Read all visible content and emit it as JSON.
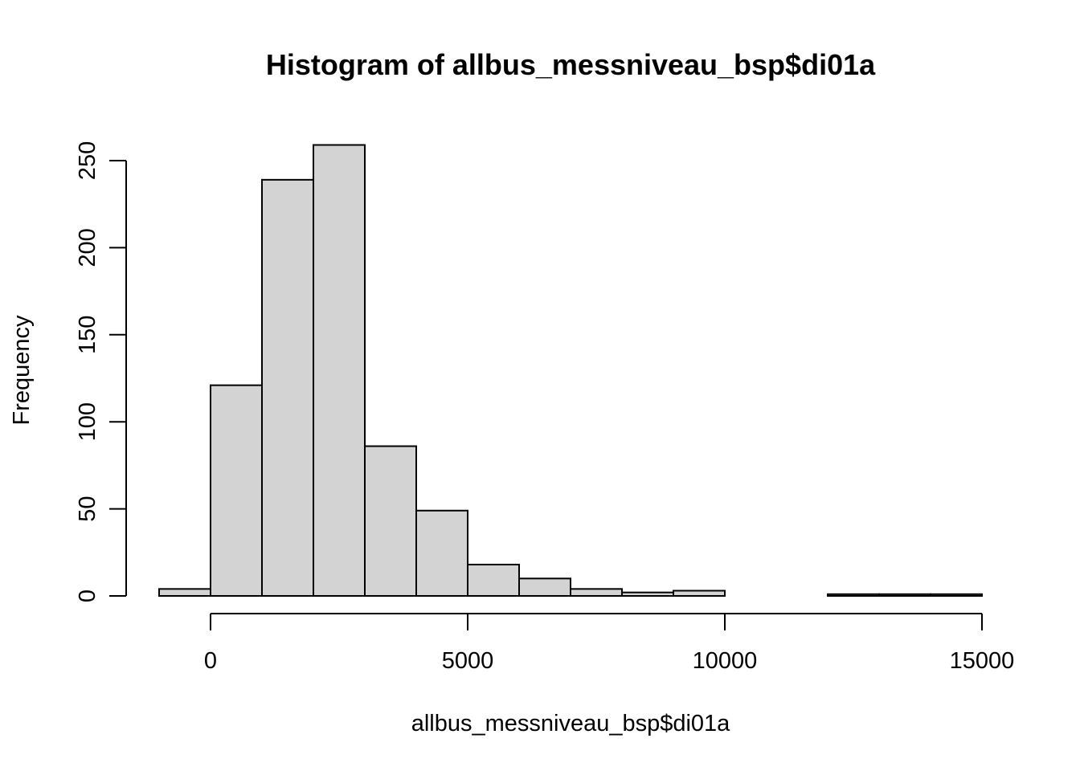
{
  "chart_data": {
    "type": "histogram",
    "title": "Histogram of allbus_messniveau_bsp$di01a",
    "xlabel": "allbus_messniveau_bsp$di01a",
    "ylabel": "Frequency",
    "bin_width": 1000,
    "bins": [
      {
        "start": -1000,
        "end": 0,
        "count": 4
      },
      {
        "start": 0,
        "end": 1000,
        "count": 121
      },
      {
        "start": 1000,
        "end": 2000,
        "count": 239
      },
      {
        "start": 2000,
        "end": 3000,
        "count": 259
      },
      {
        "start": 3000,
        "end": 4000,
        "count": 86
      },
      {
        "start": 4000,
        "end": 5000,
        "count": 49
      },
      {
        "start": 5000,
        "end": 6000,
        "count": 18
      },
      {
        "start": 6000,
        "end": 7000,
        "count": 10
      },
      {
        "start": 7000,
        "end": 8000,
        "count": 4
      },
      {
        "start": 8000,
        "end": 9000,
        "count": 2
      },
      {
        "start": 9000,
        "end": 10000,
        "count": 3
      },
      {
        "start": 10000,
        "end": 11000,
        "count": 0
      },
      {
        "start": 11000,
        "end": 12000,
        "count": 0
      },
      {
        "start": 12000,
        "end": 13000,
        "count": 1
      },
      {
        "start": 13000,
        "end": 14000,
        "count": 1
      },
      {
        "start": 14000,
        "end": 15000,
        "count": 1
      }
    ],
    "x_ticks": [
      0,
      5000,
      10000,
      15000
    ],
    "x_tick_labels": [
      "0",
      "5000",
      "10000",
      "15000"
    ],
    "y_ticks": [
      0,
      50,
      100,
      150,
      200,
      250
    ],
    "y_tick_labels": [
      "0",
      "50",
      "100",
      "150",
      "200",
      "250"
    ],
    "xlim": [
      -1000,
      15000
    ],
    "ylim": [
      0,
      250
    ],
    "bar_fill": "#d3d3d3",
    "grid": false,
    "legend": "none"
  }
}
